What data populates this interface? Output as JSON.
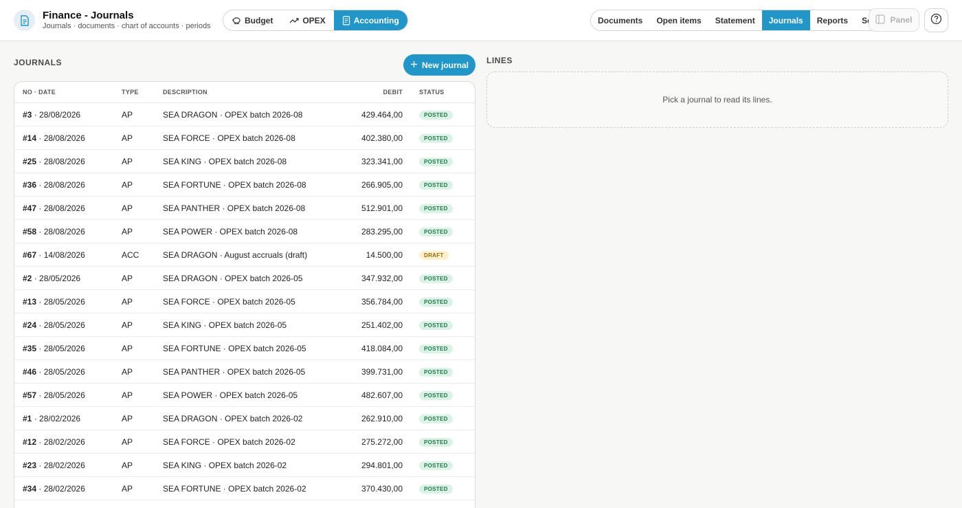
{
  "header": {
    "title": "Finance - Journals",
    "subtitle": "Journals · documents · chart of accounts · periods",
    "modules": [
      {
        "label": "Budget",
        "icon": "piggy-bank-icon",
        "active": false
      },
      {
        "label": "OPEX",
        "icon": "trend-up-icon",
        "active": false
      },
      {
        "label": "Accounting",
        "icon": "ledger-icon",
        "active": true
      }
    ],
    "nav": [
      {
        "label": "Documents",
        "active": false
      },
      {
        "label": "Open items",
        "active": false
      },
      {
        "label": "Statement",
        "active": false
      },
      {
        "label": "Journals",
        "active": true
      },
      {
        "label": "Reports",
        "active": false
      },
      {
        "label": "Setup",
        "active": false
      }
    ],
    "panel_label": "Panel",
    "accent": "#2196c9"
  },
  "journals": {
    "section_label": "JOURNALS",
    "new_button_label": "New journal",
    "columns": {
      "no_date": "NO · DATE",
      "type": "TYPE",
      "description": "DESCRIPTION",
      "debit": "DEBIT",
      "status": "STATUS"
    },
    "rows": [
      {
        "no": "#3",
        "date": "28/08/2026",
        "type": "AP",
        "description": "SEA DRAGON · OPEX batch 2026-08",
        "debit": "429.464,00",
        "status": "POSTED"
      },
      {
        "no": "#14",
        "date": "28/08/2026",
        "type": "AP",
        "description": "SEA FORCE · OPEX batch 2026-08",
        "debit": "402.380,00",
        "status": "POSTED"
      },
      {
        "no": "#25",
        "date": "28/08/2026",
        "type": "AP",
        "description": "SEA KING · OPEX batch 2026-08",
        "debit": "323.341,00",
        "status": "POSTED"
      },
      {
        "no": "#36",
        "date": "28/08/2026",
        "type": "AP",
        "description": "SEA FORTUNE · OPEX batch 2026-08",
        "debit": "266.905,00",
        "status": "POSTED"
      },
      {
        "no": "#47",
        "date": "28/08/2026",
        "type": "AP",
        "description": "SEA PANTHER · OPEX batch 2026-08",
        "debit": "512.901,00",
        "status": "POSTED"
      },
      {
        "no": "#58",
        "date": "28/08/2026",
        "type": "AP",
        "description": "SEA POWER · OPEX batch 2026-08",
        "debit": "283.295,00",
        "status": "POSTED"
      },
      {
        "no": "#67",
        "date": "14/08/2026",
        "type": "ACC",
        "description": "SEA DRAGON · August accruals (draft)",
        "debit": "14.500,00",
        "status": "DRAFT"
      },
      {
        "no": "#2",
        "date": "28/05/2026",
        "type": "AP",
        "description": "SEA DRAGON · OPEX batch 2026-05",
        "debit": "347.932,00",
        "status": "POSTED"
      },
      {
        "no": "#13",
        "date": "28/05/2026",
        "type": "AP",
        "description": "SEA FORCE · OPEX batch 2026-05",
        "debit": "356.784,00",
        "status": "POSTED"
      },
      {
        "no": "#24",
        "date": "28/05/2026",
        "type": "AP",
        "description": "SEA KING · OPEX batch 2026-05",
        "debit": "251.402,00",
        "status": "POSTED"
      },
      {
        "no": "#35",
        "date": "28/05/2026",
        "type": "AP",
        "description": "SEA FORTUNE · OPEX batch 2026-05",
        "debit": "418.084,00",
        "status": "POSTED"
      },
      {
        "no": "#46",
        "date": "28/05/2026",
        "type": "AP",
        "description": "SEA PANTHER · OPEX batch 2026-05",
        "debit": "399.731,00",
        "status": "POSTED"
      },
      {
        "no": "#57",
        "date": "28/05/2026",
        "type": "AP",
        "description": "SEA POWER · OPEX batch 2026-05",
        "debit": "482.607,00",
        "status": "POSTED"
      },
      {
        "no": "#1",
        "date": "28/02/2026",
        "type": "AP",
        "description": "SEA DRAGON · OPEX batch 2026-02",
        "debit": "262.910,00",
        "status": "POSTED"
      },
      {
        "no": "#12",
        "date": "28/02/2026",
        "type": "AP",
        "description": "SEA FORCE · OPEX batch 2026-02",
        "debit": "275.272,00",
        "status": "POSTED"
      },
      {
        "no": "#23",
        "date": "28/02/2026",
        "type": "AP",
        "description": "SEA KING · OPEX batch 2026-02",
        "debit": "294.801,00",
        "status": "POSTED"
      },
      {
        "no": "#34",
        "date": "28/02/2026",
        "type": "AP",
        "description": "SEA FORTUNE · OPEX batch 2026-02",
        "debit": "370.430,00",
        "status": "POSTED"
      }
    ]
  },
  "lines": {
    "section_label": "LINES",
    "empty_message": "Pick a journal to read its lines."
  }
}
